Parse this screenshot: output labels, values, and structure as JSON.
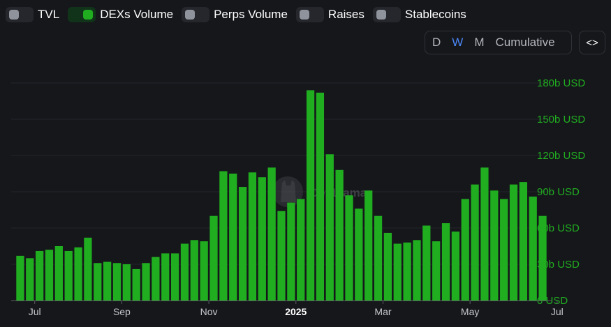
{
  "toggles": [
    {
      "label": "TVL",
      "on": false
    },
    {
      "label": "DEXs Volume",
      "on": true
    },
    {
      "label": "Perps Volume",
      "on": false
    },
    {
      "label": "Raises",
      "on": false
    },
    {
      "label": "Stablecoins",
      "on": false
    }
  ],
  "intervals": [
    {
      "label": "D",
      "active": false
    },
    {
      "label": "W",
      "active": true
    },
    {
      "label": "M",
      "active": false
    },
    {
      "label": "Cumulative",
      "active": false
    }
  ],
  "embed_label": "<>",
  "watermark": {
    "text": "DefiLlama"
  },
  "colors": {
    "bar": "#20ad20",
    "axis_label": "#20ad20",
    "background": "#16171b",
    "active_interval": "#4b86f6"
  },
  "chart_data": {
    "type": "bar",
    "title": "",
    "xlabel": "",
    "ylabel": "",
    "series": [
      {
        "name": "DEXs Volume",
        "values": [
          37,
          35,
          41,
          42,
          45,
          41,
          44,
          52,
          31,
          32,
          31,
          30,
          26,
          31,
          36,
          39,
          39,
          47,
          50,
          49,
          70,
          107,
          105,
          94,
          106,
          102,
          110,
          74,
          81,
          84,
          174,
          172,
          121,
          108,
          87,
          76,
          91,
          70,
          56,
          47,
          48,
          50,
          62,
          49,
          64,
          57,
          84,
          96,
          110,
          91,
          84,
          96,
          98,
          86,
          70
        ]
      }
    ],
    "y_ticks": [
      {
        "value": 0,
        "label": "0 USD"
      },
      {
        "value": 30,
        "label": "30b USD"
      },
      {
        "value": 60,
        "label": "60b USD"
      },
      {
        "value": 90,
        "label": "90b USD"
      },
      {
        "value": 120,
        "label": "120b USD"
      },
      {
        "value": 150,
        "label": "150b USD"
      },
      {
        "value": 180,
        "label": "180b USD"
      }
    ],
    "y_unit": "b USD",
    "ylim": [
      0,
      180
    ],
    "x_ticks": [
      {
        "index": 2,
        "label": "Jul",
        "bold": false
      },
      {
        "index": 11,
        "label": "Sep",
        "bold": false
      },
      {
        "index": 20,
        "label": "Nov",
        "bold": false
      },
      {
        "index": 29,
        "label": "2025",
        "bold": true
      },
      {
        "index": 38,
        "label": "Mar",
        "bold": false
      },
      {
        "index": 47,
        "label": "May",
        "bold": false
      },
      {
        "index": 56,
        "label": "Jul",
        "bold": false
      }
    ],
    "grid": true,
    "legend": "none"
  }
}
